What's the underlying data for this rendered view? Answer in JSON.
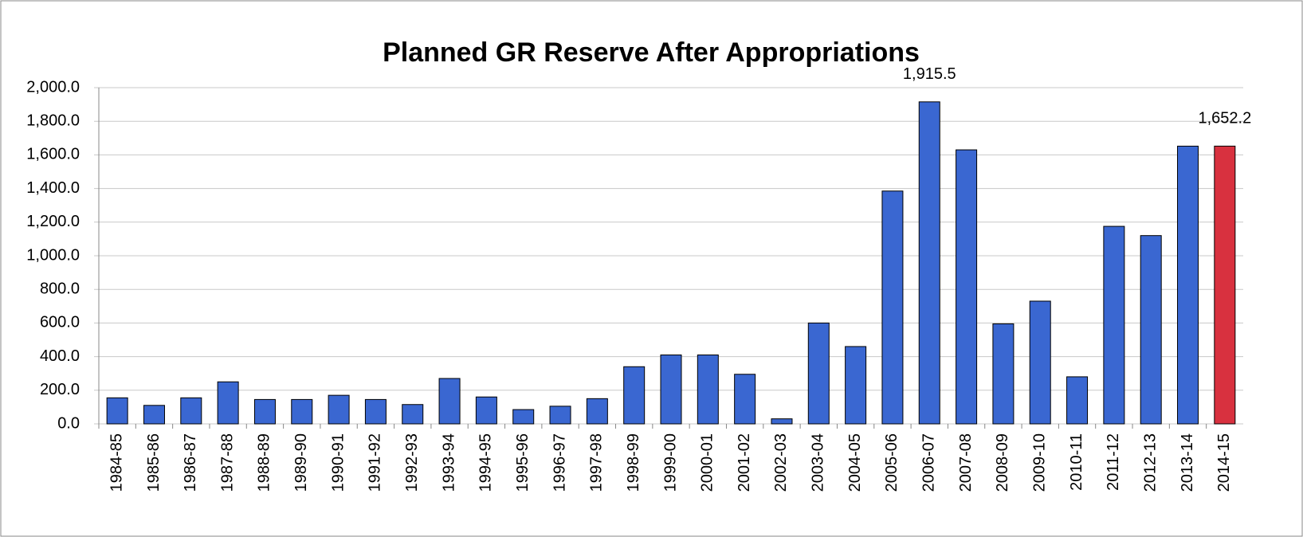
{
  "chart_data": {
    "type": "bar",
    "title": "Planned GR Reserve After Appropriations",
    "categories": [
      "1984-85",
      "1985-86",
      "1986-87",
      "1987-88",
      "1988-89",
      "1989-90",
      "1990-91",
      "1991-92",
      "1992-93",
      "1993-94",
      "1994-95",
      "1995-96",
      "1996-97",
      "1997-98",
      "1998-99",
      "1999-00",
      "2000-01",
      "2001-02",
      "2002-03",
      "2003-04",
      "2004-05",
      "2005-06",
      "2006-07",
      "2007-08",
      "2008-09",
      "2009-10",
      "2010-11",
      "2011-12",
      "2012-13",
      "2013-14",
      "2014-15"
    ],
    "values": [
      155,
      110,
      155,
      250,
      145,
      145,
      170,
      145,
      115,
      270,
      160,
      85,
      105,
      150,
      340,
      410,
      410,
      295,
      30,
      600,
      460,
      1385,
      1915.5,
      1630,
      595,
      730,
      280,
      1175,
      1120,
      1652,
      1652.2
    ],
    "value_labels": [
      null,
      null,
      null,
      null,
      null,
      null,
      null,
      null,
      null,
      null,
      null,
      null,
      null,
      null,
      null,
      null,
      null,
      null,
      null,
      null,
      null,
      null,
      "1,915.5",
      null,
      null,
      null,
      null,
      null,
      null,
      null,
      "1,652.2"
    ],
    "colors": [
      "#3a67d1",
      "#3a67d1",
      "#3a67d1",
      "#3a67d1",
      "#3a67d1",
      "#3a67d1",
      "#3a67d1",
      "#3a67d1",
      "#3a67d1",
      "#3a67d1",
      "#3a67d1",
      "#3a67d1",
      "#3a67d1",
      "#3a67d1",
      "#3a67d1",
      "#3a67d1",
      "#3a67d1",
      "#3a67d1",
      "#3a67d1",
      "#3a67d1",
      "#3a67d1",
      "#3a67d1",
      "#3a67d1",
      "#3a67d1",
      "#3a67d1",
      "#3a67d1",
      "#3a67d1",
      "#3a67d1",
      "#3a67d1",
      "#3a67d1",
      "#d8313f"
    ],
    "ylim": [
      0,
      2000
    ],
    "yticks": [
      {
        "value": 0,
        "label": "0.0"
      },
      {
        "value": 200,
        "label": "200.0"
      },
      {
        "value": 400,
        "label": "400.0"
      },
      {
        "value": 600,
        "label": "600.0"
      },
      {
        "value": 800,
        "label": "800.0"
      },
      {
        "value": 1000,
        "label": "1,000.0"
      },
      {
        "value": 1200,
        "label": "1,200.0"
      },
      {
        "value": 1400,
        "label": "1,400.0"
      },
      {
        "value": 1600,
        "label": "1,600.0"
      },
      {
        "value": 1800,
        "label": "1,800.0"
      },
      {
        "value": 2000,
        "label": "2,000.0"
      }
    ],
    "grid": true
  }
}
